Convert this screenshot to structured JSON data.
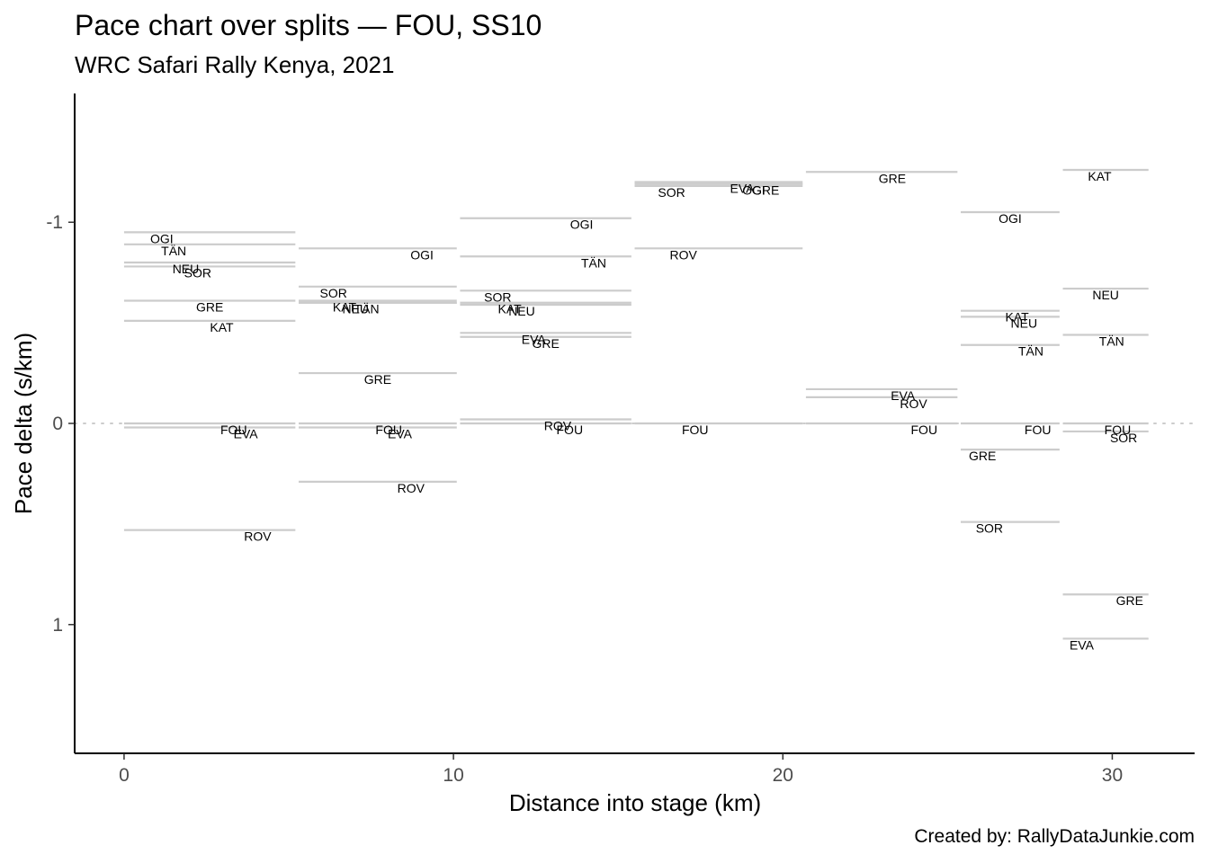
{
  "chart_data": {
    "type": "line",
    "title": "Pace chart over splits — FOU, SS10",
    "subtitle": "WRC Safari Rally Kenya, 2021",
    "xlabel": "Distance into stage (km)",
    "ylabel": "Pace delta (s/km)",
    "caption": "Created by: RallyDataJunkie.com",
    "xlim": [
      -1.5,
      32.5
    ],
    "ylim": [
      1.64,
      -1.64
    ],
    "y_reversed": true,
    "x_ticks": [
      0,
      10,
      20,
      30
    ],
    "x_tick_labels": [
      "0",
      "10",
      "20",
      "30"
    ],
    "y_ticks": [
      -1,
      0,
      1
    ],
    "y_tick_labels": [
      "-1",
      "0",
      "1"
    ],
    "reference_line": 0,
    "grid": false,
    "legend": "none",
    "segment_color": "#cccccc",
    "splits": [
      {
        "start": 0,
        "end": 5.2,
        "entries": [
          {
            "driver": "OGI",
            "delta": -0.95
          },
          {
            "driver": "TÄN",
            "delta": -0.89
          },
          {
            "driver": "NEU",
            "delta": -0.8
          },
          {
            "driver": "SOR",
            "delta": -0.78
          },
          {
            "driver": "GRE",
            "delta": -0.61
          },
          {
            "driver": "KAT",
            "delta": -0.51
          },
          {
            "driver": "FOU",
            "delta": 0
          },
          {
            "driver": "EVA",
            "delta": 0.02
          },
          {
            "driver": "ROV",
            "delta": 0.53
          }
        ]
      },
      {
        "start": 5.3,
        "end": 10.1,
        "entries": [
          {
            "driver": "OGI",
            "delta": -0.87
          },
          {
            "driver": "SOR",
            "delta": -0.68
          },
          {
            "driver": "KAT",
            "delta": -0.61
          },
          {
            "driver": "NEU",
            "delta": -0.6
          },
          {
            "driver": "TÄN",
            "delta": -0.6
          },
          {
            "driver": "GRE",
            "delta": -0.25
          },
          {
            "driver": "FOU",
            "delta": 0
          },
          {
            "driver": "EVA",
            "delta": 0.02
          },
          {
            "driver": "ROV",
            "delta": 0.29
          }
        ]
      },
      {
        "start": 10.2,
        "end": 15.4,
        "entries": [
          {
            "driver": "OGI",
            "delta": -1.02
          },
          {
            "driver": "TÄN",
            "delta": -0.83
          },
          {
            "driver": "SOR",
            "delta": -0.66
          },
          {
            "driver": "KAT",
            "delta": -0.6
          },
          {
            "driver": "NEU",
            "delta": -0.59
          },
          {
            "driver": "EVA",
            "delta": -0.45
          },
          {
            "driver": "GRE",
            "delta": -0.43
          },
          {
            "driver": "ROV",
            "delta": -0.02
          },
          {
            "driver": "FOU",
            "delta": 0
          }
        ]
      },
      {
        "start": 15.5,
        "end": 20.6,
        "entries": [
          {
            "driver": "EVA",
            "delta": -1.2
          },
          {
            "driver": "OGI",
            "delta": -1.19
          },
          {
            "driver": "GRE",
            "delta": -1.19
          },
          {
            "driver": "SOR",
            "delta": -1.18
          },
          {
            "driver": "ROV",
            "delta": -0.87
          },
          {
            "driver": "FOU",
            "delta": 0
          }
        ]
      },
      {
        "start": 20.7,
        "end": 25.3,
        "entries": [
          {
            "driver": "GRE",
            "delta": -1.25
          },
          {
            "driver": "EVA",
            "delta": -0.17
          },
          {
            "driver": "ROV",
            "delta": -0.13
          },
          {
            "driver": "FOU",
            "delta": 0
          }
        ]
      },
      {
        "start": 25.4,
        "end": 28.4,
        "entries": [
          {
            "driver": "OGI",
            "delta": -1.05
          },
          {
            "driver": "KAT",
            "delta": -0.56
          },
          {
            "driver": "NEU",
            "delta": -0.53
          },
          {
            "driver": "TÄN",
            "delta": -0.39
          },
          {
            "driver": "FOU",
            "delta": 0
          },
          {
            "driver": "GRE",
            "delta": 0.13
          },
          {
            "driver": "SOR",
            "delta": 0.49
          }
        ]
      },
      {
        "start": 28.5,
        "end": 31.1,
        "entries": [
          {
            "driver": "KAT",
            "delta": -1.26
          },
          {
            "driver": "NEU",
            "delta": -0.67
          },
          {
            "driver": "TÄN",
            "delta": -0.44
          },
          {
            "driver": "FOU",
            "delta": 0
          },
          {
            "driver": "SOR",
            "delta": 0.04
          },
          {
            "driver": "GRE",
            "delta": 0.85
          },
          {
            "driver": "EVA",
            "delta": 1.07
          }
        ]
      }
    ]
  }
}
